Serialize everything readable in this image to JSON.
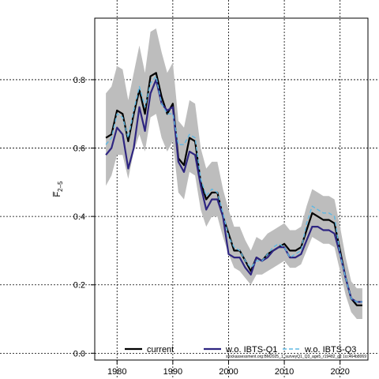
{
  "chart_data": {
    "type": "line",
    "ylabel": "F̅",
    "ylabel_sub": "2–5",
    "xlim": [
      1976,
      2025
    ],
    "ylim": [
      -0.02,
      0.98
    ],
    "x_ticks": [
      1980,
      1990,
      2000,
      2010,
      2020
    ],
    "y_ticks": [
      0.0,
      0.2,
      0.4,
      0.6,
      0.8
    ],
    "y_tick_labels": [
      "0.0",
      "0.2",
      "0.4",
      "0.6",
      "0.8"
    ],
    "grid": true,
    "legend_position": "bottom",
    "caption": "stockassessment.org:BM2025_1_surveyQ1_Q3_age5_r19482_git 1cc464b8069",
    "x": [
      1978,
      1979,
      1980,
      1981,
      1982,
      1983,
      1984,
      1985,
      1986,
      1987,
      1988,
      1989,
      1990,
      1991,
      1992,
      1993,
      1994,
      1995,
      1996,
      1997,
      1998,
      1999,
      2000,
      2001,
      2002,
      2003,
      2004,
      2005,
      2006,
      2007,
      2008,
      2009,
      2010,
      2011,
      2012,
      2013,
      2014,
      2015,
      2016,
      2017,
      2018,
      2019,
      2020,
      2021,
      2022,
      2023,
      2024
    ],
    "series": [
      {
        "name": "current",
        "color": "#000000",
        "dash": "none",
        "width": 2.2,
        "values": [
          0.63,
          0.64,
          0.71,
          0.7,
          0.62,
          0.7,
          0.77,
          0.7,
          0.81,
          0.82,
          0.75,
          0.7,
          0.73,
          0.57,
          0.55,
          0.63,
          0.62,
          0.5,
          0.45,
          0.47,
          0.47,
          0.4,
          0.35,
          0.3,
          0.3,
          0.27,
          0.24,
          0.28,
          0.27,
          0.29,
          0.3,
          0.31,
          0.32,
          0.3,
          0.3,
          0.31,
          0.36,
          0.41,
          0.4,
          0.39,
          0.39,
          0.38,
          0.3,
          0.22,
          0.16,
          0.14,
          0.14
        ]
      },
      {
        "name": "w.o. IBTS-Q1",
        "color": "#2e2581",
        "dash": "none",
        "width": 2.2,
        "values": [
          0.58,
          0.6,
          0.66,
          0.64,
          0.54,
          0.6,
          0.72,
          0.65,
          0.76,
          0.8,
          0.73,
          0.71,
          0.72,
          0.56,
          0.53,
          0.59,
          0.58,
          0.49,
          0.42,
          0.45,
          0.45,
          0.4,
          0.29,
          0.28,
          0.28,
          0.25,
          0.23,
          0.28,
          0.27,
          0.28,
          0.3,
          0.31,
          0.31,
          0.28,
          0.28,
          0.29,
          0.33,
          0.37,
          0.37,
          0.36,
          0.36,
          0.35,
          0.29,
          0.22,
          0.16,
          0.15,
          0.15
        ]
      },
      {
        "name": "w.o. IBTS-Q3",
        "color": "#5fb8e2",
        "dash": "5,3",
        "width": 1.4,
        "values": [
          0.61,
          0.63,
          0.7,
          0.69,
          0.63,
          0.71,
          0.78,
          0.72,
          0.79,
          0.81,
          0.73,
          0.7,
          0.7,
          0.61,
          0.61,
          0.64,
          0.63,
          0.51,
          0.46,
          0.48,
          0.47,
          0.41,
          0.34,
          0.31,
          0.3,
          0.27,
          0.25,
          0.27,
          0.27,
          0.29,
          0.31,
          0.32,
          0.31,
          0.28,
          0.29,
          0.3,
          0.38,
          0.43,
          0.42,
          0.41,
          0.41,
          0.4,
          0.29,
          0.22,
          0.16,
          0.15,
          0.15
        ]
      }
    ],
    "confidence_band": {
      "color": "#bdbdbd",
      "lower": [
        0.49,
        0.52,
        0.58,
        0.58,
        0.51,
        0.59,
        0.64,
        0.59,
        0.69,
        0.7,
        0.63,
        0.59,
        0.62,
        0.47,
        0.45,
        0.53,
        0.52,
        0.42,
        0.37,
        0.4,
        0.4,
        0.34,
        0.29,
        0.25,
        0.24,
        0.22,
        0.2,
        0.23,
        0.23,
        0.24,
        0.25,
        0.26,
        0.27,
        0.25,
        0.25,
        0.26,
        0.3,
        0.34,
        0.33,
        0.32,
        0.32,
        0.31,
        0.24,
        0.17,
        0.12,
        0.1,
        0.1
      ],
      "upper": [
        0.76,
        0.78,
        0.84,
        0.83,
        0.74,
        0.82,
        0.9,
        0.82,
        0.94,
        0.95,
        0.88,
        0.82,
        0.85,
        0.68,
        0.66,
        0.74,
        0.73,
        0.6,
        0.54,
        0.56,
        0.56,
        0.48,
        0.42,
        0.37,
        0.37,
        0.33,
        0.3,
        0.34,
        0.33,
        0.35,
        0.36,
        0.37,
        0.38,
        0.36,
        0.36,
        0.37,
        0.43,
        0.48,
        0.47,
        0.46,
        0.46,
        0.45,
        0.37,
        0.28,
        0.21,
        0.19,
        0.19
      ]
    }
  }
}
